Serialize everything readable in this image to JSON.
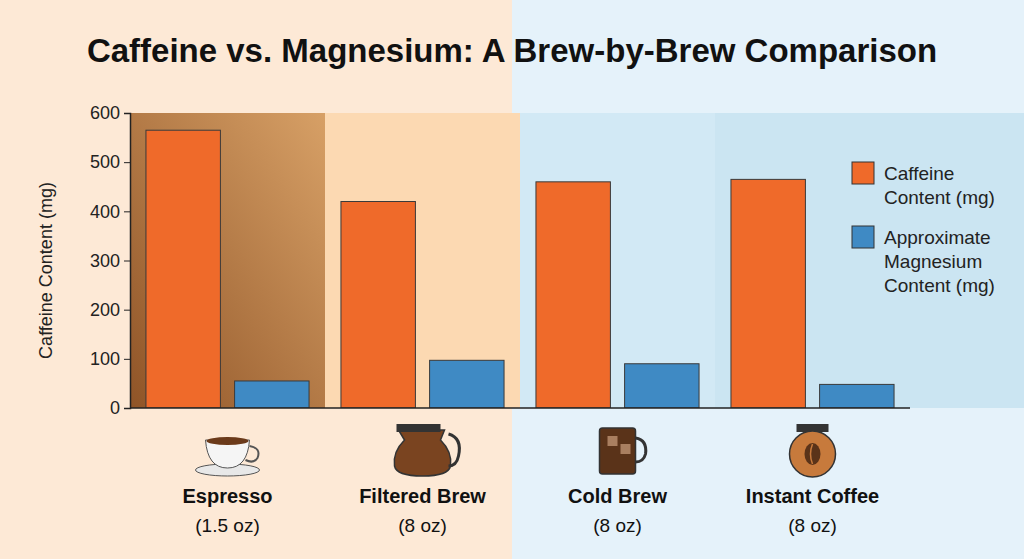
{
  "chart_data": {
    "type": "bar",
    "title": "Caffeine vs. Magnesium: A Brew-by-Brew Comparison",
    "y_label": "Caffeine Content (mg)",
    "categories": [
      "Espresso (1.5 oz)",
      "Filtered Brew (8 oz)",
      "Cold Brew (8 oz)",
      "Instant Coffee (8 oz)"
    ],
    "series": [
      {
        "name": "Caffeine Content (mg)",
        "color": "#ef6a2a",
        "values": [
          565,
          420,
          460,
          465
        ]
      },
      {
        "name": "Approximate Magnesium Content (mg)",
        "color": "#3f8ac4",
        "values": [
          55,
          97,
          90,
          48
        ]
      }
    ],
    "ylim": [
      0,
      600
    ],
    "yticks": [
      0,
      100,
      200,
      300,
      400,
      500,
      600
    ],
    "grid": false,
    "legend": "right"
  }
}
